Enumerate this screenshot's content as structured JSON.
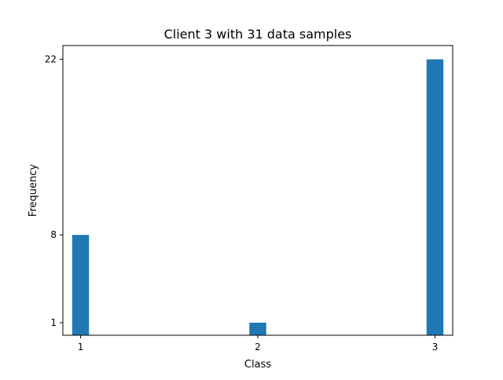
{
  "chart_data": {
    "type": "bar",
    "title": "Client 3 with 31 data samples",
    "xlabel": "Class",
    "ylabel": "Frequency",
    "categories": [
      "1",
      "2",
      "3"
    ],
    "x": [
      1,
      2,
      3
    ],
    "values": [
      8,
      1,
      22
    ],
    "xticks": [
      "1",
      "2",
      "3"
    ],
    "yticks": [
      "1",
      "8",
      "22"
    ],
    "ytick_values": [
      1,
      8,
      22
    ],
    "xlim": [
      0.9,
      3.1
    ],
    "ylim": [
      0,
      23.1
    ],
    "bar_color": "#1f77b4",
    "grid": false,
    "legend": false
  }
}
